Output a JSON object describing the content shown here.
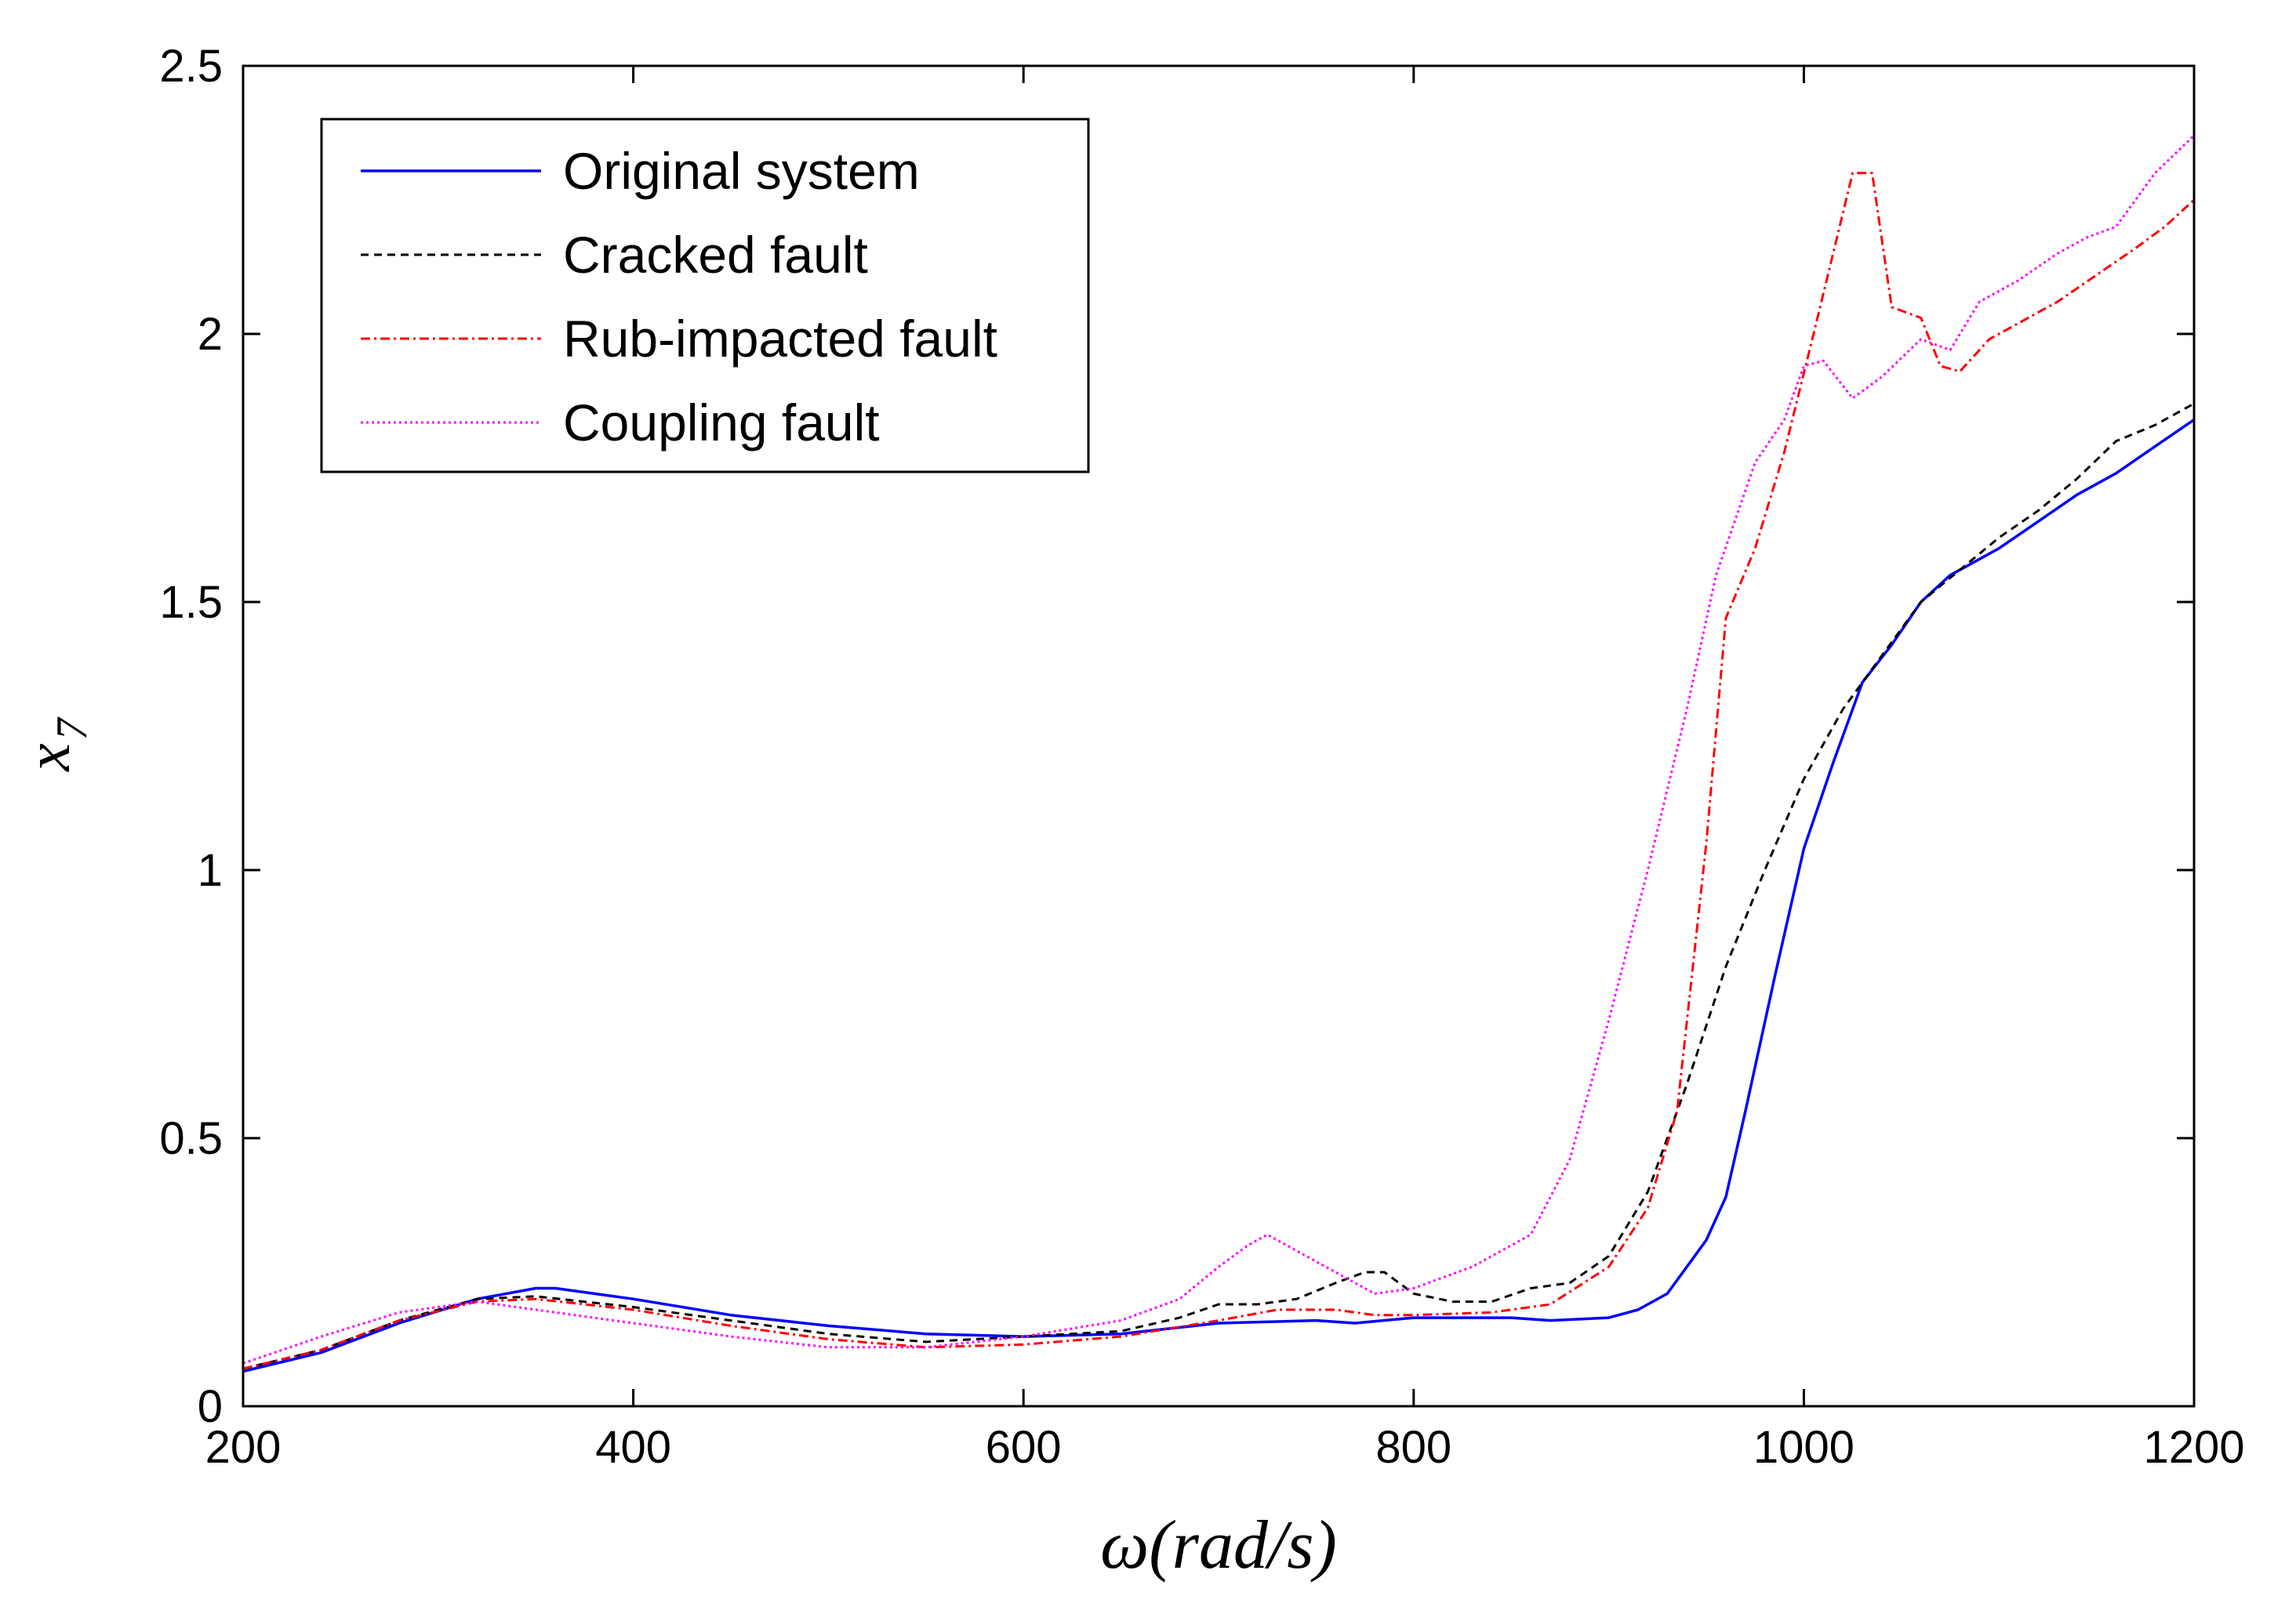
{
  "chart_data": {
    "type": "line",
    "title": "",
    "xlabel": "ω(rad/s)",
    "ylabel_base": "x",
    "ylabel_sub": "7",
    "xlim": [
      200,
      1200
    ],
    "ylim": [
      0,
      2.5
    ],
    "xticks": [
      200,
      400,
      600,
      800,
      1000,
      1200
    ],
    "xtick_labels": [
      "200",
      "400",
      "600",
      "800",
      "1000",
      "1200"
    ],
    "yticks": [
      0,
      0.5,
      1,
      1.5,
      2,
      2.5
    ],
    "ytick_labels": [
      "0",
      "0.5",
      "1",
      "1.5",
      "2",
      "2.5"
    ],
    "grid": false,
    "legend_position": "top-left",
    "series": [
      {
        "name": "Original system",
        "color": "#0000ff",
        "dash": "solid",
        "points": [
          [
            200,
            0.065
          ],
          [
            240,
            0.1
          ],
          [
            280,
            0.155
          ],
          [
            320,
            0.2
          ],
          [
            350,
            0.22
          ],
          [
            360,
            0.22
          ],
          [
            400,
            0.2
          ],
          [
            450,
            0.17
          ],
          [
            500,
            0.15
          ],
          [
            550,
            0.135
          ],
          [
            600,
            0.13
          ],
          [
            650,
            0.135
          ],
          [
            700,
            0.155
          ],
          [
            750,
            0.16
          ],
          [
            770,
            0.155
          ],
          [
            800,
            0.165
          ],
          [
            850,
            0.165
          ],
          [
            870,
            0.16
          ],
          [
            900,
            0.165
          ],
          [
            915,
            0.18
          ],
          [
            930,
            0.21
          ],
          [
            950,
            0.31
          ],
          [
            960,
            0.39
          ],
          [
            970,
            0.55
          ],
          [
            985,
            0.8
          ],
          [
            1000,
            1.04
          ],
          [
            1015,
            1.2
          ],
          [
            1030,
            1.35
          ],
          [
            1045,
            1.42
          ],
          [
            1060,
            1.5
          ],
          [
            1075,
            1.55
          ],
          [
            1090,
            1.58
          ],
          [
            1100,
            1.6
          ],
          [
            1120,
            1.65
          ],
          [
            1140,
            1.7
          ],
          [
            1160,
            1.74
          ],
          [
            1180,
            1.79
          ],
          [
            1200,
            1.84
          ]
        ]
      },
      {
        "name": "Cracked fault",
        "color": "#000000",
        "dash": "dashed",
        "points": [
          [
            200,
            0.07
          ],
          [
            240,
            0.105
          ],
          [
            280,
            0.16
          ],
          [
            320,
            0.2
          ],
          [
            350,
            0.205
          ],
          [
            400,
            0.185
          ],
          [
            450,
            0.16
          ],
          [
            500,
            0.135
          ],
          [
            550,
            0.12
          ],
          [
            600,
            0.13
          ],
          [
            650,
            0.14
          ],
          [
            680,
            0.165
          ],
          [
            700,
            0.19
          ],
          [
            720,
            0.19
          ],
          [
            740,
            0.2
          ],
          [
            760,
            0.23
          ],
          [
            775,
            0.25
          ],
          [
            785,
            0.25
          ],
          [
            800,
            0.21
          ],
          [
            820,
            0.195
          ],
          [
            840,
            0.195
          ],
          [
            860,
            0.22
          ],
          [
            880,
            0.23
          ],
          [
            900,
            0.28
          ],
          [
            920,
            0.4
          ],
          [
            940,
            0.6
          ],
          [
            960,
            0.82
          ],
          [
            980,
            1.0
          ],
          [
            1000,
            1.17
          ],
          [
            1020,
            1.3
          ],
          [
            1040,
            1.4
          ],
          [
            1060,
            1.5
          ],
          [
            1080,
            1.56
          ],
          [
            1100,
            1.62
          ],
          [
            1120,
            1.67
          ],
          [
            1140,
            1.73
          ],
          [
            1160,
            1.8
          ],
          [
            1180,
            1.83
          ],
          [
            1200,
            1.87
          ]
        ]
      },
      {
        "name": "Rub-impacted fault",
        "color": "#ff0000",
        "dash": "dashdot",
        "points": [
          [
            200,
            0.07
          ],
          [
            240,
            0.105
          ],
          [
            280,
            0.16
          ],
          [
            320,
            0.195
          ],
          [
            350,
            0.2
          ],
          [
            400,
            0.18
          ],
          [
            450,
            0.15
          ],
          [
            500,
            0.125
          ],
          [
            550,
            0.11
          ],
          [
            600,
            0.115
          ],
          [
            650,
            0.13
          ],
          [
            700,
            0.16
          ],
          [
            730,
            0.18
          ],
          [
            760,
            0.18
          ],
          [
            780,
            0.17
          ],
          [
            800,
            0.17
          ],
          [
            840,
            0.175
          ],
          [
            870,
            0.19
          ],
          [
            900,
            0.26
          ],
          [
            920,
            0.37
          ],
          [
            935,
            0.55
          ],
          [
            950,
            1.05
          ],
          [
            960,
            1.47
          ],
          [
            975,
            1.6
          ],
          [
            990,
            1.78
          ],
          [
            1005,
            2.0
          ],
          [
            1015,
            2.15
          ],
          [
            1025,
            2.3
          ],
          [
            1035,
            2.3
          ],
          [
            1045,
            2.05
          ],
          [
            1060,
            2.03
          ],
          [
            1070,
            1.94
          ],
          [
            1080,
            1.93
          ],
          [
            1095,
            1.99
          ],
          [
            1110,
            2.02
          ],
          [
            1130,
            2.06
          ],
          [
            1150,
            2.11
          ],
          [
            1170,
            2.16
          ],
          [
            1185,
            2.2
          ],
          [
            1200,
            2.25
          ]
        ]
      },
      {
        "name": "Coupling fault",
        "color": "#ff00ff",
        "dash": "dotted",
        "points": [
          [
            200,
            0.08
          ],
          [
            240,
            0.13
          ],
          [
            280,
            0.175
          ],
          [
            320,
            0.195
          ],
          [
            350,
            0.18
          ],
          [
            400,
            0.155
          ],
          [
            450,
            0.13
          ],
          [
            500,
            0.11
          ],
          [
            550,
            0.11
          ],
          [
            600,
            0.13
          ],
          [
            650,
            0.16
          ],
          [
            680,
            0.2
          ],
          [
            700,
            0.26
          ],
          [
            715,
            0.3
          ],
          [
            725,
            0.32
          ],
          [
            740,
            0.29
          ],
          [
            760,
            0.25
          ],
          [
            780,
            0.21
          ],
          [
            800,
            0.22
          ],
          [
            830,
            0.26
          ],
          [
            860,
            0.32
          ],
          [
            880,
            0.46
          ],
          [
            900,
            0.72
          ],
          [
            920,
            1.0
          ],
          [
            940,
            1.3
          ],
          [
            955,
            1.55
          ],
          [
            975,
            1.76
          ],
          [
            990,
            1.84
          ],
          [
            1000,
            1.94
          ],
          [
            1010,
            1.95
          ],
          [
            1025,
            1.88
          ],
          [
            1040,
            1.92
          ],
          [
            1060,
            1.99
          ],
          [
            1075,
            1.97
          ],
          [
            1090,
            2.06
          ],
          [
            1110,
            2.1
          ],
          [
            1130,
            2.15
          ],
          [
            1145,
            2.18
          ],
          [
            1160,
            2.2
          ],
          [
            1180,
            2.3
          ],
          [
            1200,
            2.37
          ]
        ]
      }
    ]
  }
}
